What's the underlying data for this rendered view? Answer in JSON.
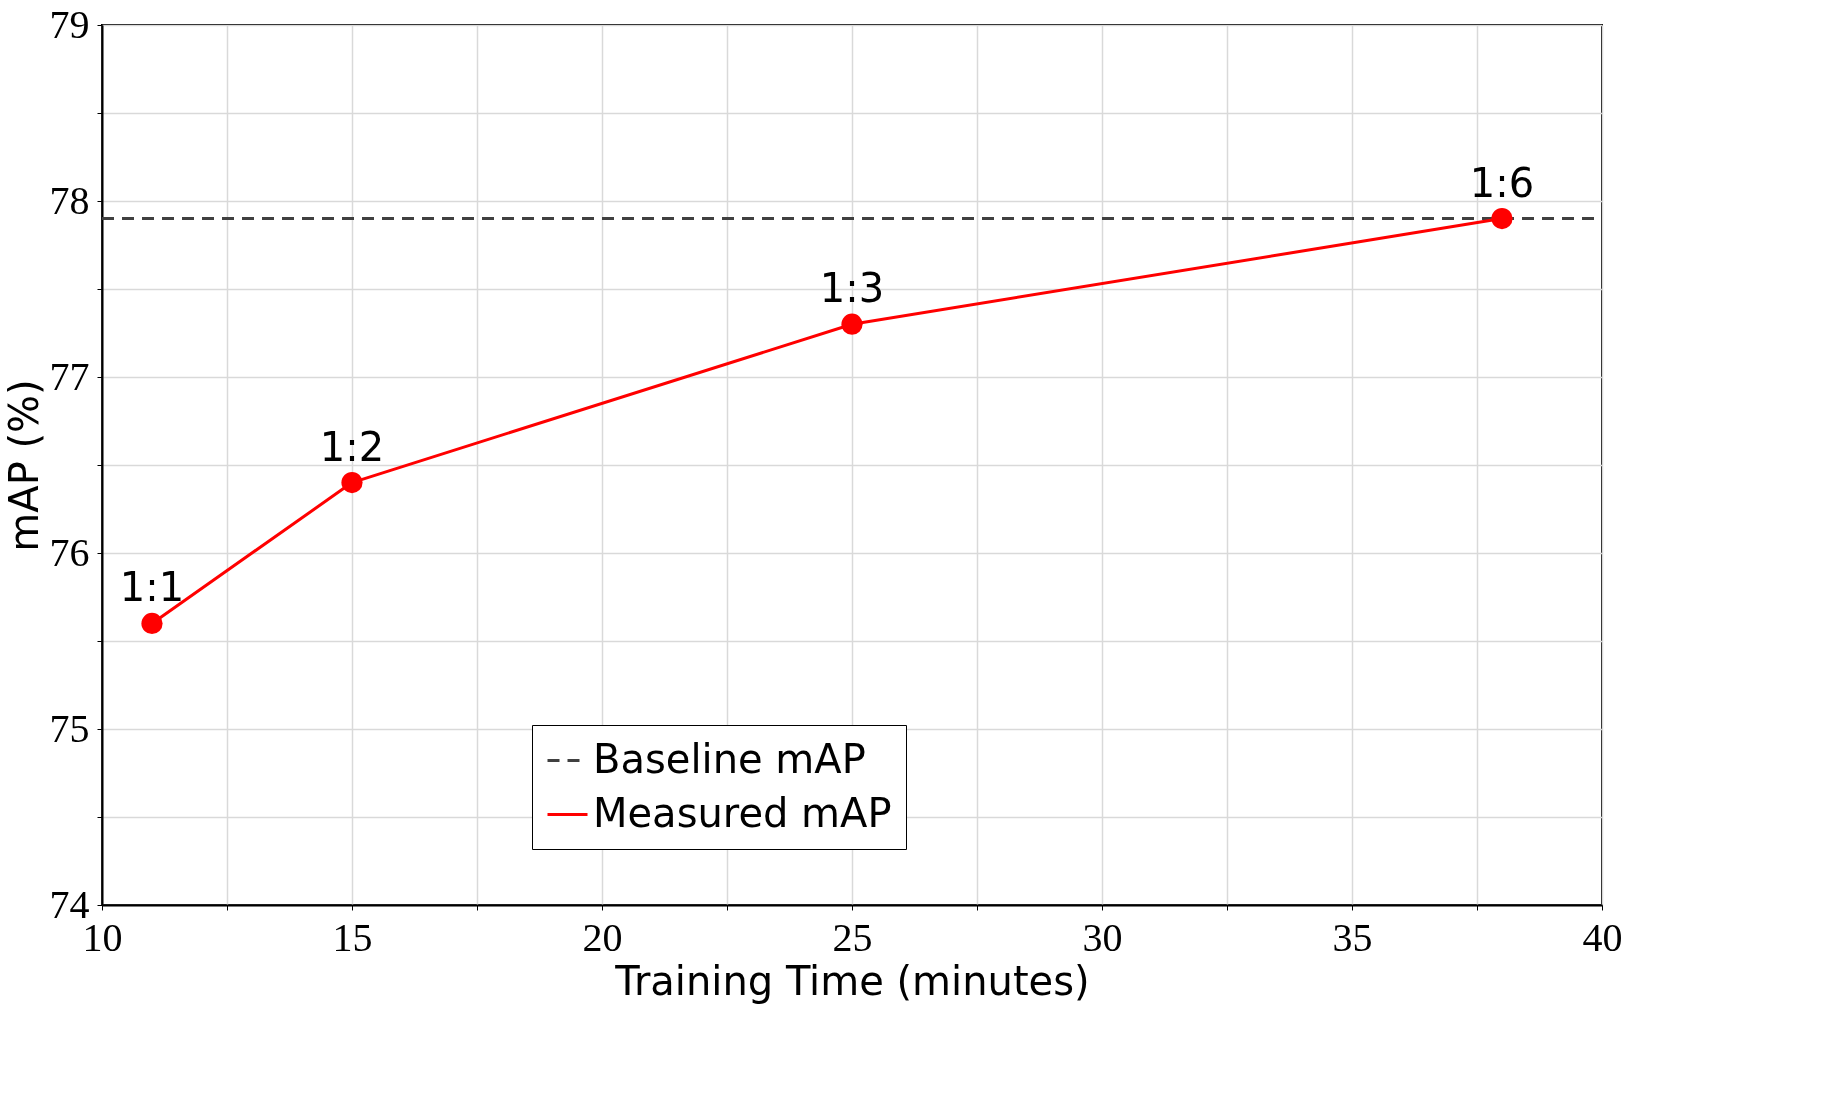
{
  "chart_data": {
    "type": "line",
    "xlabel": "Training Time (minutes)",
    "ylabel": "mAP (%)",
    "x": [
      11,
      15,
      25,
      38
    ],
    "series": [
      {
        "name": "Measured mAP",
        "color": "#ff0000",
        "values": [
          75.6,
          76.4,
          77.3,
          77.9
        ]
      }
    ],
    "xlim": [
      10,
      40
    ],
    "ylim": [
      74,
      79
    ],
    "xticks": [
      10,
      {
        "value": 12.5,
        "label": null
      },
      15,
      {
        "value": 17.5,
        "label": null
      },
      20,
      {
        "value": 22.5,
        "label": null
      },
      25,
      {
        "value": 27.5,
        "label": null
      },
      30,
      {
        "value": 32.5,
        "label": null
      },
      35,
      {
        "value": 37.5,
        "label": null
      },
      40
    ],
    "yticks": [
      74,
      {
        "value": 74.5,
        "label": null
      },
      75,
      {
        "value": 75.5,
        "label": null
      },
      76,
      {
        "value": 76.5,
        "label": null
      },
      77,
      {
        "value": 77.5,
        "label": null
      },
      78,
      {
        "value": 78.5,
        "label": null
      },
      79
    ],
    "ref_lines": [
      {
        "axis": "y",
        "value": 77.9,
        "label": "Baseline mAP",
        "color": "#404040",
        "line_style": "dashed"
      }
    ],
    "annotations": [
      {
        "text": "1:1",
        "x": 11,
        "y": 75.6
      },
      {
        "text": "1:2",
        "x": 15,
        "y": 76.4
      },
      {
        "text": "1:3",
        "x": 25,
        "y": 77.3
      },
      {
        "text": "1:6",
        "x": 38,
        "y": 77.9
      }
    ],
    "grid": true,
    "legend": "bottom",
    "marker": "circle",
    "line_style": "solid"
  }
}
